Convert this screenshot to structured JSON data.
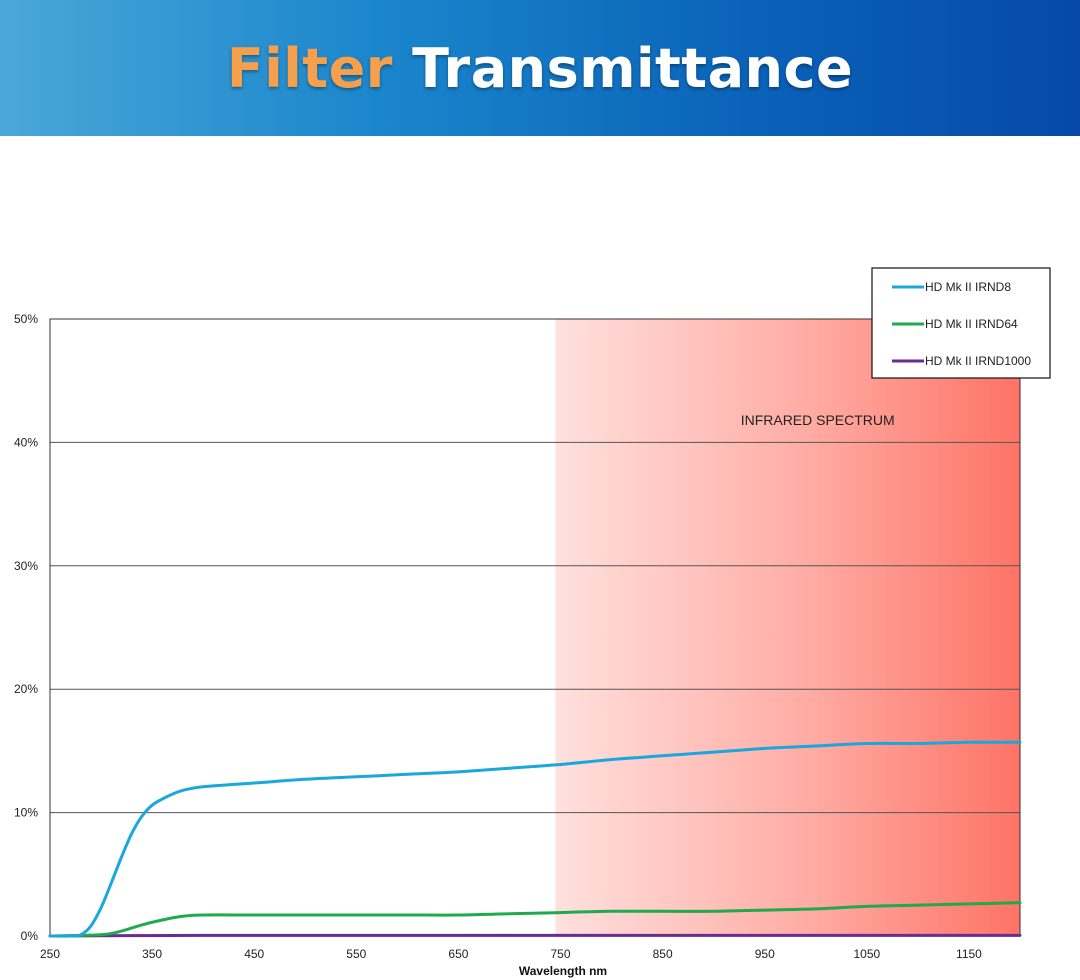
{
  "banner": {
    "title_part1": "Filter",
    "title_part2": "Transmittance"
  },
  "chart_data": {
    "type": "line",
    "title": "Filter Transmittance",
    "xlabel": "Wavelength nm",
    "ylabel": "",
    "xlim": [
      250,
      1200
    ],
    "ylim": [
      0,
      50
    ],
    "x_ticks": [
      250,
      350,
      450,
      550,
      650,
      750,
      850,
      950,
      1050,
      1150
    ],
    "y_ticks": [
      0,
      10,
      20,
      30,
      40,
      50
    ],
    "y_tick_labels": [
      "0%",
      "10%",
      "20%",
      "30%",
      "40%",
      "50%"
    ],
    "grid": "horizontal",
    "legend": "top-right",
    "highlight_region": {
      "label": "INFRARED SPECTRUM",
      "x_range": [
        745,
        1200
      ],
      "color": "#ff7366"
    },
    "series": [
      {
        "name": "HD Mk II IRND8",
        "color": "#1aa7dd",
        "x": [
          250,
          270,
          280,
          290,
          300,
          310,
          320,
          330,
          340,
          350,
          360,
          370,
          380,
          400,
          450,
          500,
          550,
          600,
          650,
          700,
          750,
          800,
          850,
          900,
          950,
          1000,
          1050,
          1100,
          1150,
          1200
        ],
        "y": [
          0,
          0,
          0.1,
          0.8,
          2.3,
          4.3,
          6.4,
          8.3,
          9.7,
          10.6,
          11.1,
          11.5,
          11.8,
          12.1,
          12.4,
          12.7,
          12.9,
          13.1,
          13.3,
          13.6,
          13.9,
          14.3,
          14.6,
          14.9,
          15.2,
          15.4,
          15.6,
          15.6,
          15.7,
          15.7
        ]
      },
      {
        "name": "HD Mk II IRND64",
        "color": "#1faa4d",
        "x": [
          250,
          300,
          320,
          340,
          360,
          380,
          400,
          450,
          500,
          550,
          600,
          650,
          700,
          750,
          800,
          850,
          900,
          950,
          1000,
          1050,
          1100,
          1150,
          1200
        ],
        "y": [
          0,
          0.1,
          0.4,
          0.9,
          1.3,
          1.6,
          1.7,
          1.7,
          1.7,
          1.7,
          1.7,
          1.7,
          1.8,
          1.9,
          2.0,
          2.0,
          2.0,
          2.1,
          2.2,
          2.4,
          2.5,
          2.6,
          2.7
        ]
      },
      {
        "name": "HD Mk II IRND1000",
        "color": "#6a2c91",
        "x": [
          250,
          400,
          600,
          800,
          1000,
          1200
        ],
        "y": [
          0,
          0.05,
          0.05,
          0.05,
          0.05,
          0.05
        ]
      }
    ]
  }
}
